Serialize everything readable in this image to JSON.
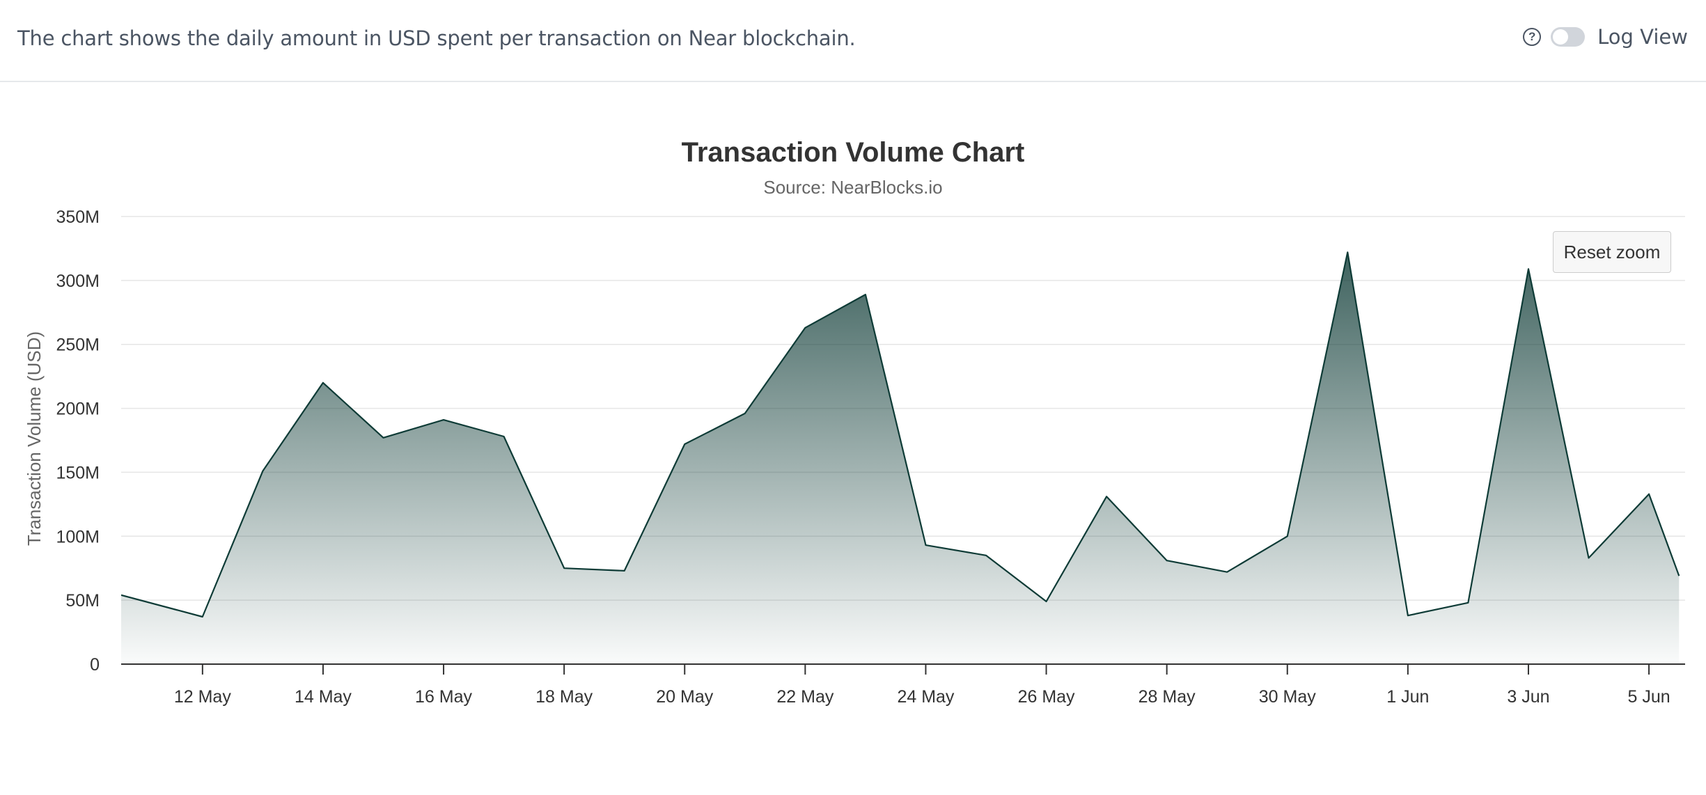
{
  "header": {
    "description": "The chart shows the daily amount in USD spent per transaction on Near blockchain.",
    "help_icon": "question-circle-icon",
    "toggle_label": "Log View",
    "toggle_on": false
  },
  "reset_zoom_label": "Reset zoom",
  "colors": {
    "line": "#0e3b36",
    "fill": "#0e3b36",
    "grid": "#e6e6e6",
    "axis": "#333333"
  },
  "chart_data": {
    "type": "area",
    "title": "Transaction Volume Chart",
    "subtitle": "Source: NearBlocks.io",
    "xlabel": "",
    "ylabel": "Transaction Volume (USD)",
    "ylim": [
      0,
      350000000
    ],
    "y_ticks": [
      {
        "value": 0,
        "label": "0"
      },
      {
        "value": 50000000,
        "label": "50M"
      },
      {
        "value": 100000000,
        "label": "100M"
      },
      {
        "value": 150000000,
        "label": "150M"
      },
      {
        "value": 200000000,
        "label": "200M"
      },
      {
        "value": 250000000,
        "label": "250M"
      },
      {
        "value": 300000000,
        "label": "300M"
      },
      {
        "value": 350000000,
        "label": "350M"
      }
    ],
    "x_range": [
      -0.35,
      25.6
    ],
    "x_ticks": [
      {
        "index": 1,
        "label": "12 May"
      },
      {
        "index": 3,
        "label": "14 May"
      },
      {
        "index": 5,
        "label": "16 May"
      },
      {
        "index": 7,
        "label": "18 May"
      },
      {
        "index": 9,
        "label": "20 May"
      },
      {
        "index": 11,
        "label": "22 May"
      },
      {
        "index": 13,
        "label": "24 May"
      },
      {
        "index": 15,
        "label": "26 May"
      },
      {
        "index": 17,
        "label": "28 May"
      },
      {
        "index": 19,
        "label": "30 May"
      },
      {
        "index": 21,
        "label": "1 Jun"
      },
      {
        "index": 23,
        "label": "3 Jun"
      },
      {
        "index": 25,
        "label": "5 Jun"
      }
    ],
    "series": [
      {
        "name": "Transaction Volume",
        "points": [
          {
            "x": -0.35,
            "date": "10 May",
            "value": 54000000
          },
          {
            "x": 1,
            "date": "12 May",
            "value": 37000000
          },
          {
            "x": 2,
            "date": "13 May",
            "value": 151000000
          },
          {
            "x": 3,
            "date": "14 May",
            "value": 220000000
          },
          {
            "x": 4,
            "date": "15 May",
            "value": 177000000
          },
          {
            "x": 5,
            "date": "16 May",
            "value": 191000000
          },
          {
            "x": 6,
            "date": "17 May",
            "value": 178000000
          },
          {
            "x": 7,
            "date": "18 May",
            "value": 75000000
          },
          {
            "x": 8,
            "date": "19 May",
            "value": 73000000
          },
          {
            "x": 9,
            "date": "20 May",
            "value": 172000000
          },
          {
            "x": 10,
            "date": "21 May",
            "value": 196000000
          },
          {
            "x": 11,
            "date": "22 May",
            "value": 263000000
          },
          {
            "x": 12,
            "date": "23 May",
            "value": 289000000
          },
          {
            "x": 13,
            "date": "24 May",
            "value": 93000000
          },
          {
            "x": 14,
            "date": "25 May",
            "value": 85000000
          },
          {
            "x": 15,
            "date": "26 May",
            "value": 49000000
          },
          {
            "x": 16,
            "date": "27 May",
            "value": 131000000
          },
          {
            "x": 17,
            "date": "28 May",
            "value": 81000000
          },
          {
            "x": 18,
            "date": "29 May",
            "value": 72000000
          },
          {
            "x": 19,
            "date": "30 May",
            "value": 100000000
          },
          {
            "x": 20,
            "date": "31 May",
            "value": 322000000
          },
          {
            "x": 21,
            "date": "1 Jun",
            "value": 38000000
          },
          {
            "x": 22,
            "date": "2 Jun",
            "value": 48000000
          },
          {
            "x": 23,
            "date": "3 Jun",
            "value": 309000000
          },
          {
            "x": 24,
            "date": "4 Jun",
            "value": 83000000
          },
          {
            "x": 25,
            "date": "5 Jun",
            "value": 133000000
          },
          {
            "x": 25.5,
            "date": "6 Jun",
            "value": 69000000
          }
        ]
      }
    ]
  }
}
